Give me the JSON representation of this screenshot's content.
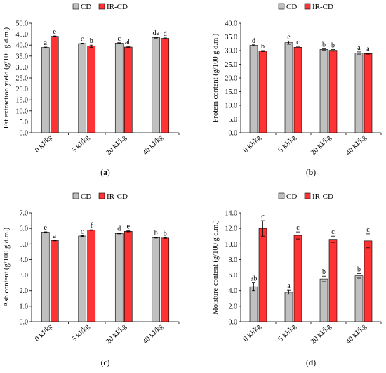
{
  "legend": {
    "cd": "CD",
    "ircd": "IR-CD"
  },
  "colors": {
    "cd": "#c0c0c0",
    "ircd": "#ff3333",
    "stroke": "#000000"
  },
  "chart_data": [
    {
      "type": "bar",
      "panel_label": "(a)",
      "ylabel": "Fat extraction yield (g/100 g d.m.)",
      "categories": [
        "0 kJ/kg",
        "5 kJ/kg",
        "20 kJ/kg",
        "40 kJ/kg"
      ],
      "ylim": [
        0,
        50
      ],
      "yticks": [
        "0.0",
        "5.0",
        "10.0",
        "15.0",
        "20.0",
        "25.0",
        "30.0",
        "35.0",
        "40.0",
        "45.0",
        "50.0"
      ],
      "series": [
        {
          "name": "CD",
          "values": [
            38.9,
            40.7,
            40.9,
            43.4
          ],
          "errors": [
            0.2,
            0.2,
            0.2,
            0.2
          ],
          "letters": [
            "a",
            "c",
            "c",
            "de"
          ]
        },
        {
          "name": "IR-CD",
          "values": [
            44.0,
            39.5,
            39.1,
            43.1
          ],
          "errors": [
            0.2,
            0.5,
            0.3,
            0.2
          ],
          "letters": [
            "e",
            "b",
            "ab",
            "d"
          ]
        }
      ],
      "legend_position": "top"
    },
    {
      "type": "bar",
      "panel_label": "(b)",
      "ylabel": "Protein content (g/100 g d.m.)",
      "categories": [
        "0 kJ/kg",
        "5 kJ/kg",
        "20 kJ/kg",
        "40 kJ/kg"
      ],
      "ylim": [
        0,
        40
      ],
      "yticks": [
        "0.0",
        "5.0",
        "10.0",
        "15.0",
        "20.0",
        "25.0",
        "30.0",
        "35.0",
        "40.0"
      ],
      "series": [
        {
          "name": "CD",
          "values": [
            31.9,
            32.9,
            30.4,
            29.1
          ],
          "errors": [
            0.2,
            0.6,
            0.2,
            0.4
          ],
          "letters": [
            "d",
            "e",
            "b",
            "a"
          ]
        },
        {
          "name": "IR-CD",
          "values": [
            29.8,
            31.2,
            30.1,
            28.9
          ],
          "errors": [
            0.2,
            0.3,
            0.3,
            0.2
          ],
          "letters": [
            "b",
            "c",
            "b",
            "a"
          ]
        }
      ],
      "legend_position": "top"
    },
    {
      "type": "bar",
      "panel_label": "(c)",
      "ylabel": "Ash content (g/100 g d.m.)",
      "categories": [
        "0 kJ/kg",
        "5 kJ/kg",
        "20 kJ/kg",
        "40 kJ/kg"
      ],
      "ylim": [
        0,
        7
      ],
      "yticks": [
        "0.0",
        "1.0",
        "2.0",
        "3.0",
        "4.0",
        "5.0",
        "6.0",
        "7.0"
      ],
      "series": [
        {
          "name": "CD",
          "values": [
            5.76,
            5.51,
            5.68,
            5.41
          ],
          "errors": [
            0.02,
            0.03,
            0.03,
            0.03
          ],
          "letters": [
            "e",
            "c",
            "d",
            "b"
          ]
        },
        {
          "name": "IR-CD",
          "values": [
            5.22,
            5.89,
            5.81,
            5.38
          ],
          "errors": [
            0.02,
            0.02,
            0.03,
            0.02
          ],
          "letters": [
            "a",
            "f",
            "e",
            "b"
          ]
        }
      ],
      "legend_position": "top"
    },
    {
      "type": "bar",
      "panel_label": "(d)",
      "ylabel": "Moisture content (g/100 g d.m.)",
      "categories": [
        "0 kJ/kg",
        "5 kJ/kg",
        "20 kJ/kg",
        "40 kJ/kg"
      ],
      "ylim": [
        0,
        14
      ],
      "yticks": [
        "0.0",
        "2.0",
        "4.0",
        "6.0",
        "8.0",
        "10.0",
        "12.0",
        "14.0"
      ],
      "series": [
        {
          "name": "CD",
          "values": [
            4.5,
            3.8,
            5.5,
            5.9
          ],
          "errors": [
            0.5,
            0.25,
            0.35,
            0.3
          ],
          "letters": [
            "ab",
            "a",
            "b",
            "b"
          ]
        },
        {
          "name": "IR-CD",
          "values": [
            12.0,
            11.1,
            10.6,
            10.4
          ],
          "errors": [
            1.0,
            0.45,
            0.4,
            0.9
          ],
          "letters": [
            "c",
            "c",
            "c",
            "c"
          ]
        }
      ],
      "legend_position": "top"
    }
  ]
}
